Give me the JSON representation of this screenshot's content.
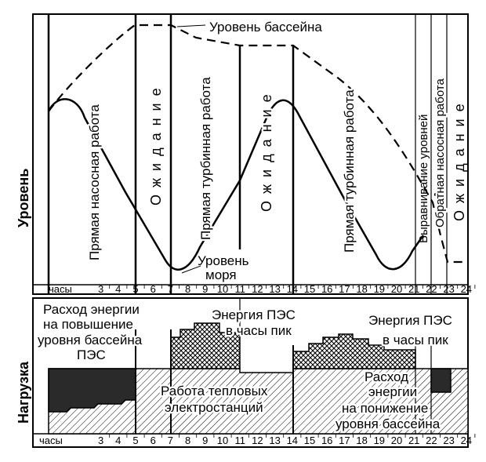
{
  "hours_label": "часы",
  "hour_ticks": [
    "3",
    "4",
    "5",
    "6",
    "7",
    "8",
    "9",
    "10",
    "11",
    "12",
    "13",
    "14",
    "15",
    "16",
    "17",
    "18",
    "19",
    "20",
    "21",
    "22",
    "23",
    "24"
  ],
  "pool_level": "Уровень бассейна",
  "sea_level_1": "Уровень",
  "sea_level_2": "моря",
  "axis_level": "Уровень",
  "axis_load": "Нагрузка",
  "phases": {
    "pump_direct": "Прямая насосная работа",
    "wait_1": "Ожидание",
    "turbine_direct_1": "Прямая турбинная работа",
    "wait_2": "Ожидание",
    "turbine_direct_2": "Прямая турбинная работа",
    "equalize": "Выравнивание уровней",
    "pump_reverse": "Обратная насосная работа",
    "wait_3": "Ожидание"
  },
  "load": {
    "raise_1": "Расход энергии",
    "raise_2": "на повышение",
    "raise_3": "уровня бассейна",
    "raise_4": "ПЭС",
    "peak1_1": "Энергия ПЭС",
    "peak1_2": "в часы пик",
    "peak2_1": "Энергия ПЭС",
    "peak2_2": "в часы пик",
    "thermal_1": "Работа тепловых",
    "thermal_2": "электростанций",
    "lower_1": "Расход",
    "lower_2": "энергии",
    "lower_3": "на понижение",
    "lower_4": "уровня бассейна"
  }
}
